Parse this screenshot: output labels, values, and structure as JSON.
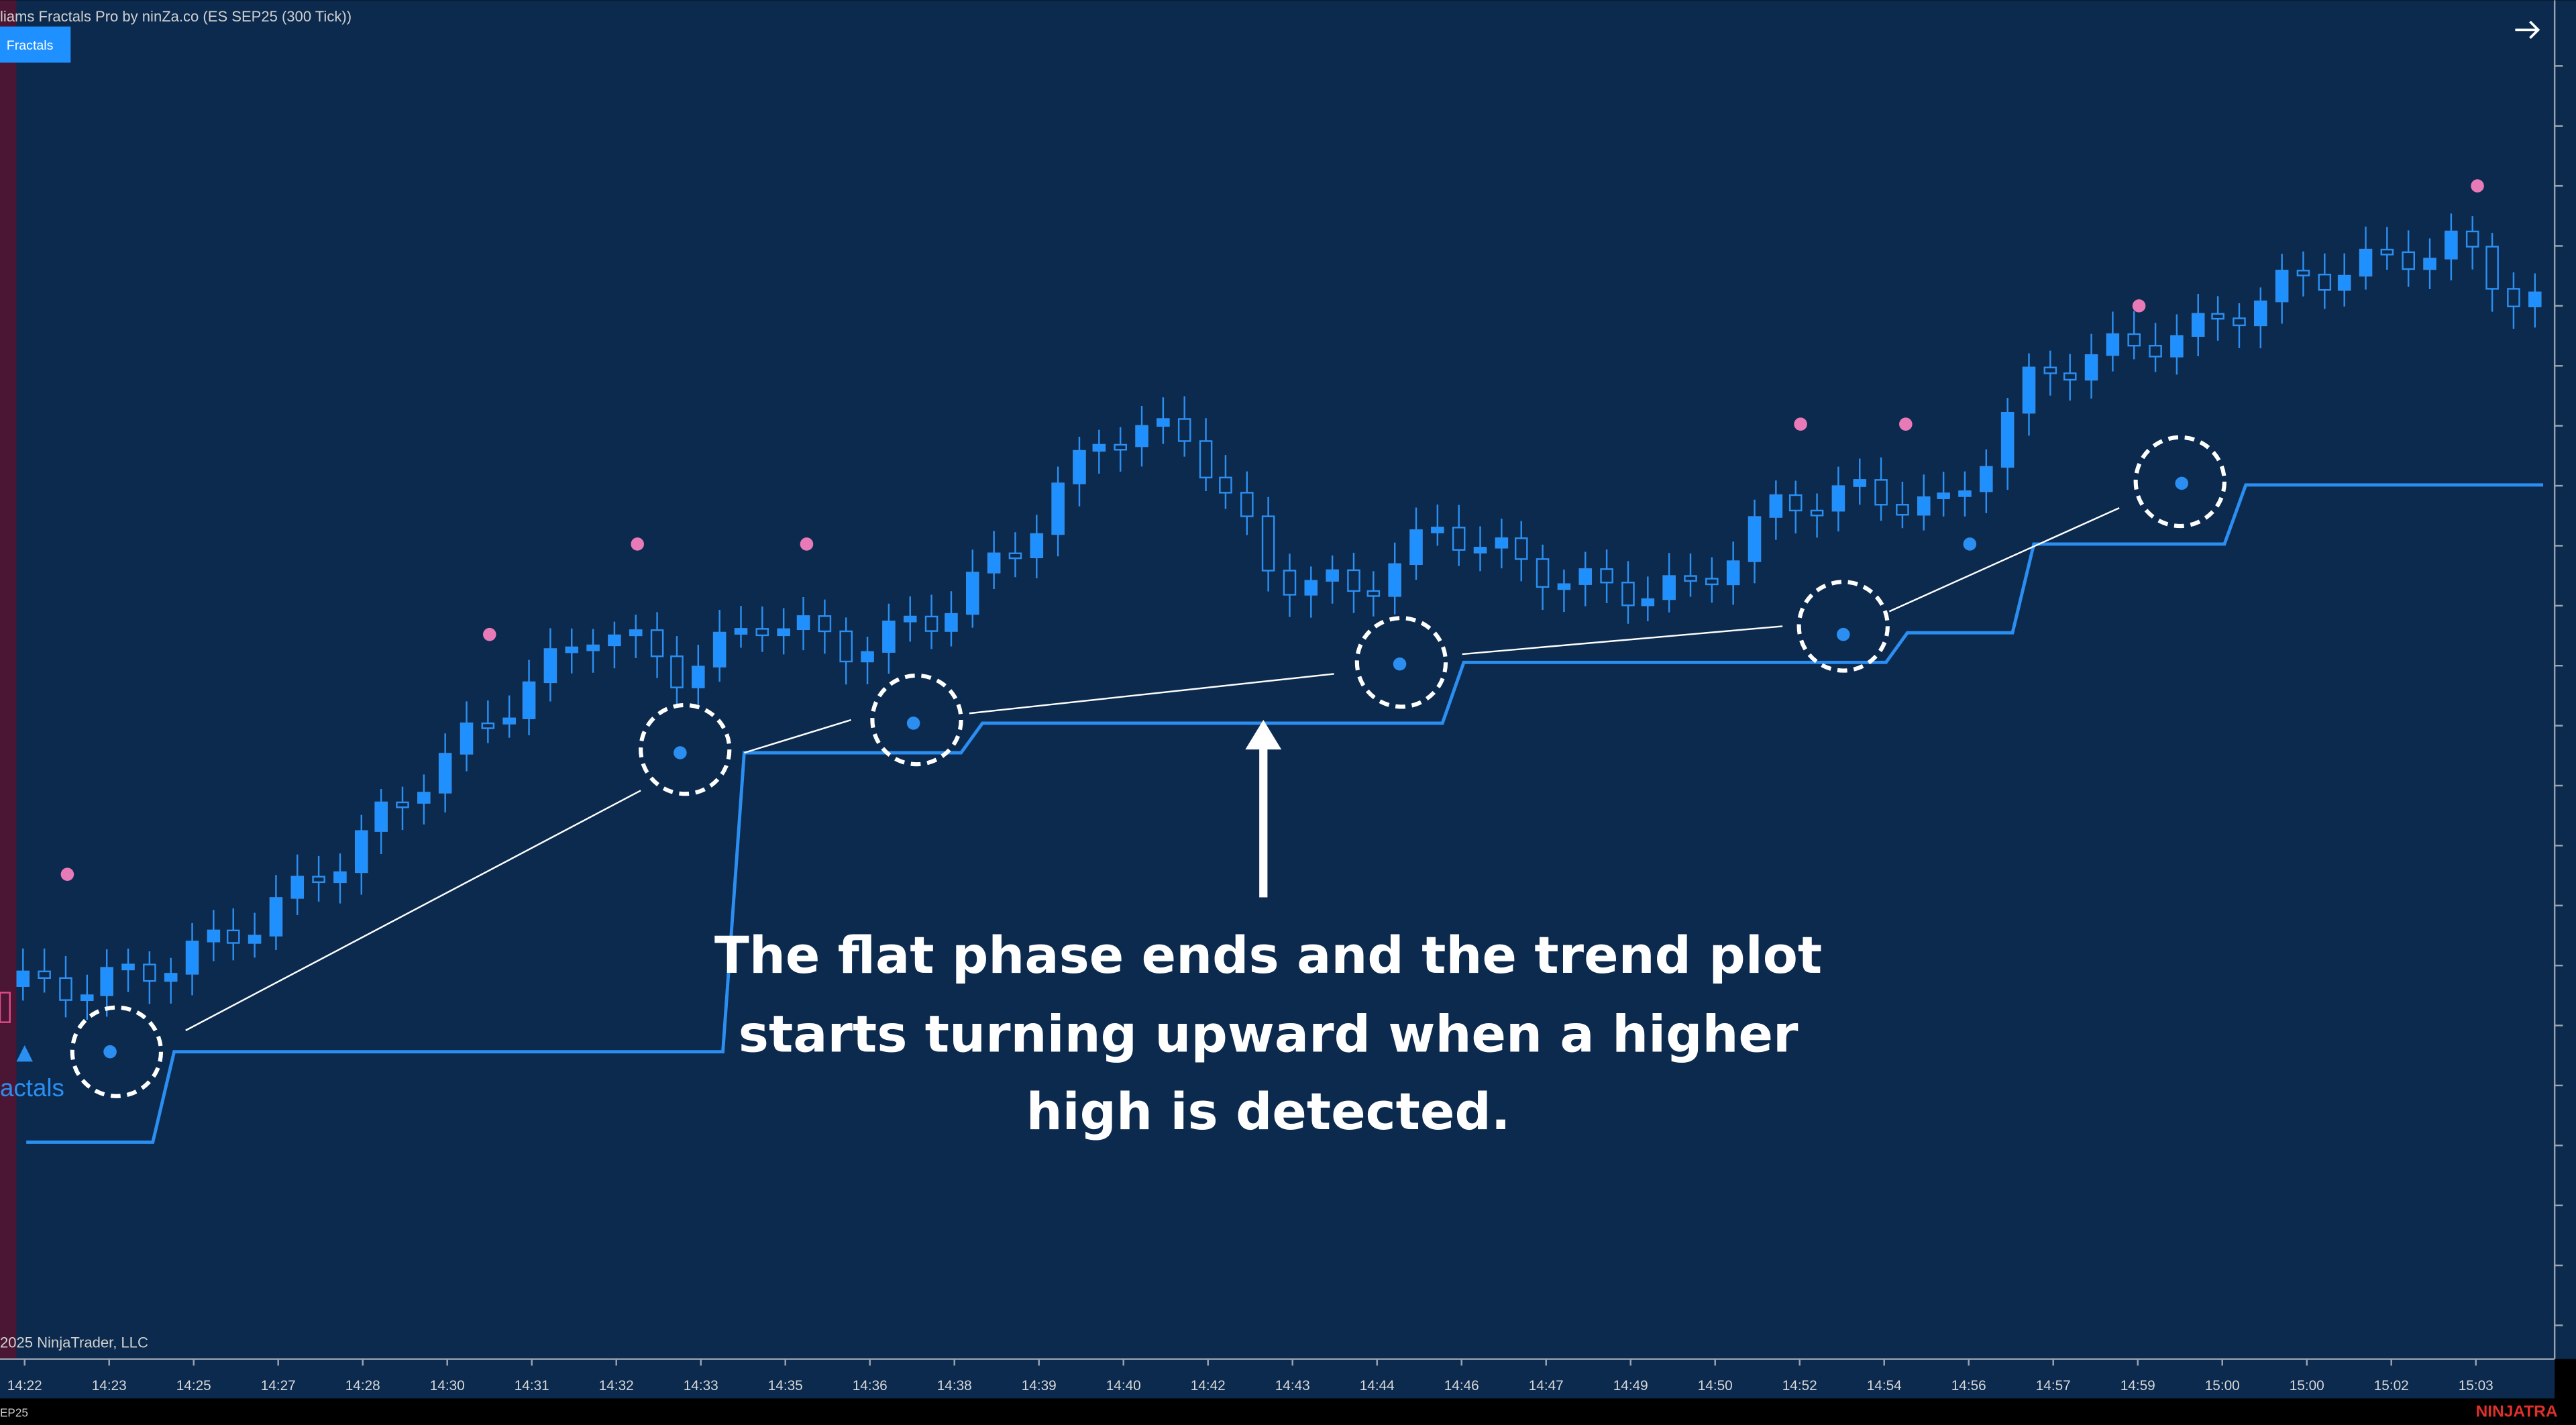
{
  "header": {
    "title": "liams Fractals Pro by ninZa.co (ES SEP25 (300 Tick))",
    "button": "Fractals"
  },
  "x_axis": {
    "labels": [
      "14:22",
      "14:23",
      "14:25",
      "14:27",
      "14:28",
      "14:30",
      "14:31",
      "14:32",
      "14:33",
      "14:35",
      "14:36",
      "14:38",
      "14:39",
      "14:40",
      "14:42",
      "14:43",
      "14:44",
      "14:46",
      "14:47",
      "14:49",
      "14:50",
      "14:52",
      "14:54",
      "14:56",
      "14:57",
      "14:59",
      "15:00",
      "15:00",
      "15:02",
      "15:03"
    ]
  },
  "annotation": {
    "lines": [
      "The flat phase ends and the trend plot",
      "starts turning upward when a higher",
      "high is detected."
    ]
  },
  "legend": {
    "label": "actals"
  },
  "footer": {
    "copyright": "2025 NinjaTrader, LLC",
    "instrument": "EP25",
    "brand": "NINJATRA"
  }
}
